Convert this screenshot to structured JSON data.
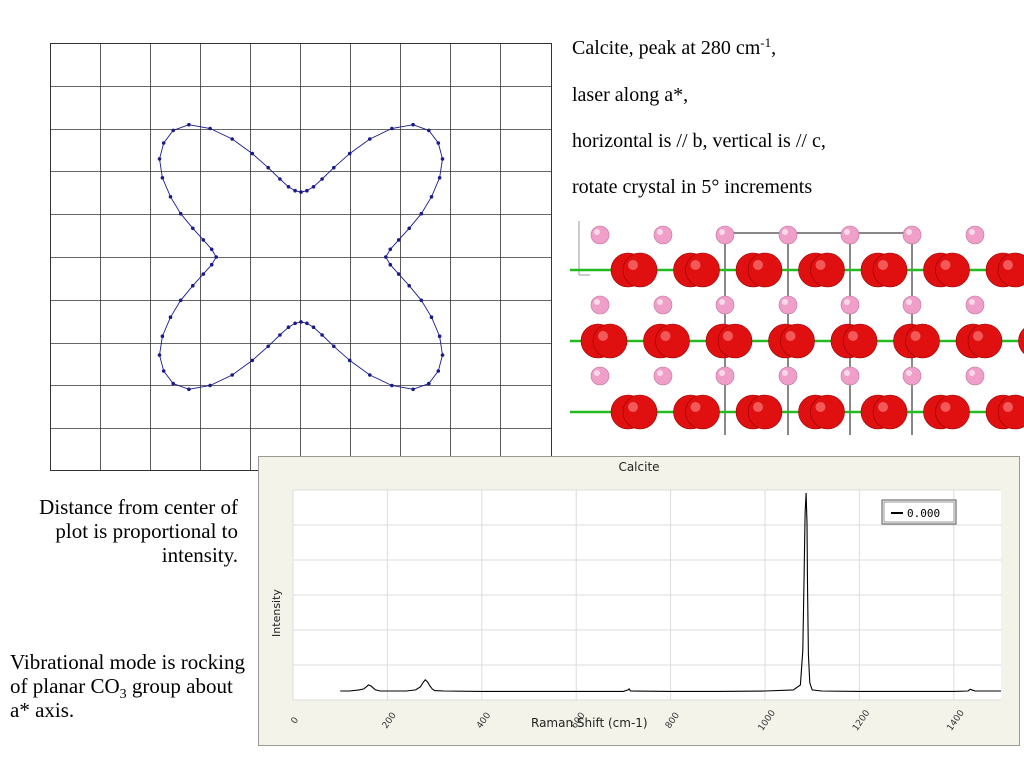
{
  "caption": {
    "line1_text": "Calcite, peak at 280 cm",
    "line1_sup": "-1",
    "line1_end": ",",
    "line2": "laser along a*,",
    "line3": "horizontal is // b, vertical is // c,",
    "line4": "rotate crystal in 5° increments"
  },
  "notes": {
    "distance": "Distance from center of plot is proportional to intensity.",
    "mode_pre": "Vibrational mode is rocking of planar CO",
    "mode_sub": "3",
    "mode_post": " group about a* axis."
  },
  "colors": {
    "polar_curve": "#1a1a8c",
    "grid": "#333333",
    "spectrum_line": "#000000",
    "oxygen": "#e01010",
    "carbon": "#1010cc",
    "calcium": "#f0a0c8",
    "bond": "#22bb22",
    "cell": "#888888",
    "panel_bg": "#f3f3ea"
  },
  "chart_data": [
    {
      "type": "scatter",
      "description_kind": "polar",
      "angle_step_deg": 5,
      "grid": true,
      "radius_by_angle": [
        {
          "deg": 0,
          "r": 0.53
        },
        {
          "deg": 5,
          "r": 0.56
        },
        {
          "deg": 10,
          "r": 0.62
        },
        {
          "deg": 15,
          "r": 0.7
        },
        {
          "deg": 20,
          "r": 0.8
        },
        {
          "deg": 25,
          "r": 0.9
        },
        {
          "deg": 30,
          "r": 1.0
        },
        {
          "deg": 35,
          "r": 1.08
        },
        {
          "deg": 40,
          "r": 1.12
        },
        {
          "deg": 45,
          "r": 1.13
        },
        {
          "deg": 50,
          "r": 1.09
        },
        {
          "deg": 55,
          "r": 0.99
        },
        {
          "deg": 60,
          "r": 0.86
        },
        {
          "deg": 65,
          "r": 0.72
        },
        {
          "deg": 70,
          "r": 0.6
        },
        {
          "deg": 75,
          "r": 0.51
        },
        {
          "deg": 80,
          "r": 0.45
        },
        {
          "deg": 85,
          "r": 0.42
        },
        {
          "deg": 90,
          "r": 0.41
        },
        {
          "deg": 95,
          "r": 0.42
        },
        {
          "deg": 100,
          "r": 0.45
        },
        {
          "deg": 105,
          "r": 0.51
        },
        {
          "deg": 110,
          "r": 0.6
        },
        {
          "deg": 115,
          "r": 0.72
        },
        {
          "deg": 120,
          "r": 0.86
        },
        {
          "deg": 125,
          "r": 0.99
        },
        {
          "deg": 130,
          "r": 1.09
        },
        {
          "deg": 135,
          "r": 1.13
        },
        {
          "deg": 140,
          "r": 1.12
        },
        {
          "deg": 145,
          "r": 1.08
        },
        {
          "deg": 150,
          "r": 1.0
        },
        {
          "deg": 155,
          "r": 0.9
        },
        {
          "deg": 160,
          "r": 0.8
        },
        {
          "deg": 165,
          "r": 0.7
        },
        {
          "deg": 170,
          "r": 0.62
        },
        {
          "deg": 175,
          "r": 0.56
        },
        {
          "deg": 180,
          "r": 0.53
        }
      ]
    },
    {
      "type": "line",
      "title": "Calcite",
      "xlabel": "Raman Shift (cm-1)",
      "ylabel": "Intensity",
      "xlim": [
        0,
        1500
      ],
      "ylim": [
        0,
        1
      ],
      "x_ticks": [
        0,
        200,
        400,
        600,
        800,
        1000,
        1200,
        1400
      ],
      "grid": true,
      "legend": {
        "placement": "top-right",
        "label": "0.000"
      },
      "series": [
        {
          "name": "0.000",
          "x": [
            100,
            120,
            140,
            150,
            155,
            160,
            165,
            170,
            175,
            185,
            200,
            240,
            260,
            270,
            275,
            280,
            285,
            290,
            295,
            300,
            320,
            400,
            500,
            600,
            700,
            710,
            712,
            715,
            800,
            900,
            1000,
            1060,
            1075,
            1080,
            1083,
            1085,
            1087,
            1089,
            1090,
            1092,
            1095,
            1100,
            1120,
            1200,
            1300,
            1400,
            1430,
            1435,
            1440,
            1445,
            1450,
            1500
          ],
          "y": [
            0.02,
            0.02,
            0.025,
            0.03,
            0.04,
            0.05,
            0.045,
            0.035,
            0.025,
            0.02,
            0.02,
            0.02,
            0.025,
            0.04,
            0.06,
            0.075,
            0.065,
            0.045,
            0.03,
            0.022,
            0.02,
            0.018,
            0.018,
            0.018,
            0.018,
            0.025,
            0.03,
            0.02,
            0.018,
            0.018,
            0.02,
            0.025,
            0.05,
            0.22,
            0.62,
            0.9,
            1.0,
            0.85,
            0.55,
            0.2,
            0.06,
            0.025,
            0.02,
            0.018,
            0.018,
            0.018,
            0.02,
            0.028,
            0.024,
            0.02,
            0.02,
            0.02
          ]
        }
      ]
    }
  ]
}
